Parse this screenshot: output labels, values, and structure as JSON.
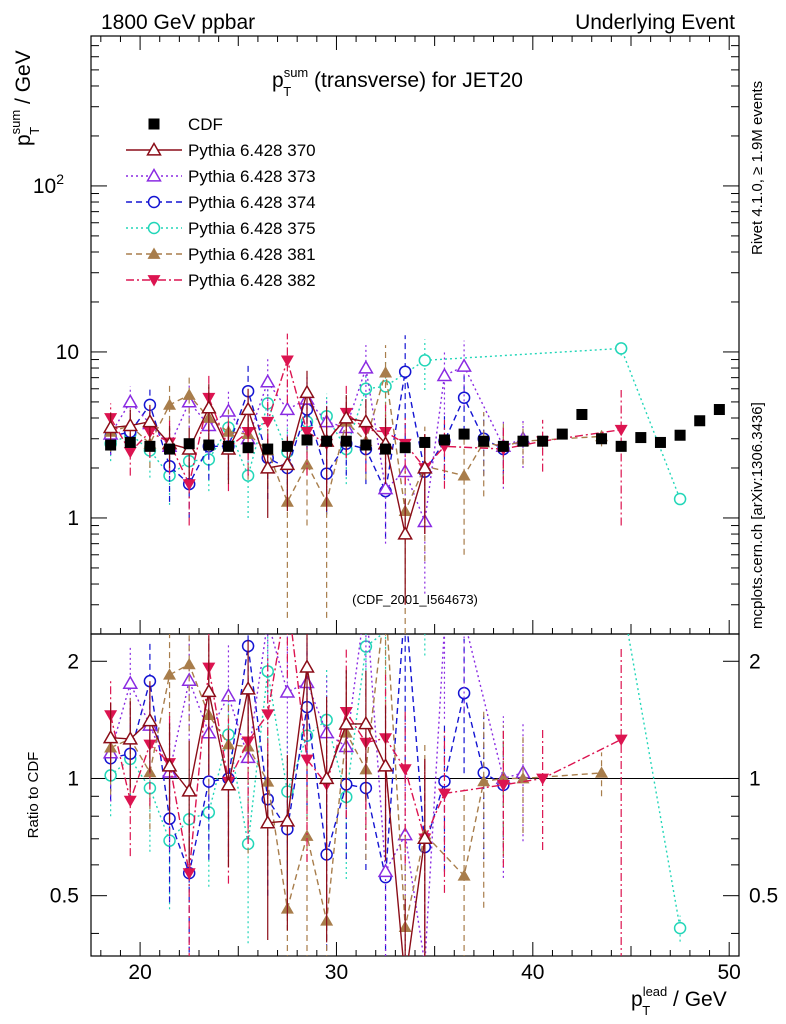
{
  "header": {
    "left": "1800 GeV ppbar",
    "right": "Underlying Event"
  },
  "side_text": {
    "rivet": "Rivet 4.1.0, ≥ 1.9M events",
    "mcplots": "mcplots.cern.ch [arXiv:1306.3436]"
  },
  "colors": {
    "cdf": "#000000",
    "p370": "#8b0d18",
    "p373": "#8a2be2",
    "p374": "#1414d2",
    "p375": "#22d6b8",
    "p381": "#a87d4b",
    "p382": "#dc1450",
    "watermark": "#9a9a9a"
  },
  "chart_data": {
    "type": "scatter",
    "title": {
      "p": "p",
      "sup": "sum",
      "sub": "T",
      "rest": " (transverse) for JET20"
    },
    "ylabel": {
      "p": "p",
      "sup": "sum",
      "sub": "T",
      "rest": " / GeV"
    },
    "xlabel": {
      "p": "p",
      "sup": "lead",
      "sub": "T",
      "rest": " / GeV"
    },
    "ratio_ylabel": "Ratio to CDF",
    "watermark": "(CDF_2001_I564673)",
    "xlim": [
      17.5,
      50.5
    ],
    "ylim": [
      0.2,
      800
    ],
    "ylog": true,
    "ratio_ylim": [
      0.35,
      2.35
    ],
    "ratio_ylog": true,
    "xticks": [
      {
        "v": 20,
        "label": "20"
      },
      {
        "v": 30,
        "label": "30"
      },
      {
        "v": 40,
        "label": "40"
      },
      {
        "v": 50,
        "label": "50"
      }
    ],
    "yticks": [
      {
        "v": 1,
        "label": "1"
      },
      {
        "v": 10,
        "label": "10"
      },
      {
        "v": 100,
        "label": "10",
        "sup": "2"
      }
    ],
    "ratio_yticks": [
      {
        "v": 0.5,
        "label": "0.5"
      },
      {
        "v": 1,
        "label": "1"
      },
      {
        "v": 2,
        "label": "2"
      }
    ],
    "legend": [
      {
        "label": "CDF",
        "key": "cdf",
        "marker": "square",
        "dash": "none",
        "color": "#000000"
      },
      {
        "label": "Pythia 6.428 370",
        "key": "p370",
        "marker": "tri-up-open",
        "dash": "solid",
        "color": "#8b0d18"
      },
      {
        "label": "Pythia 6.428 373",
        "key": "p373",
        "marker": "tri-up-open",
        "dash": "dot",
        "color": "#8a2be2"
      },
      {
        "label": "Pythia 6.428 374",
        "key": "p374",
        "marker": "circle-open",
        "dash": "dash",
        "color": "#1414d2"
      },
      {
        "label": "Pythia 6.428 375",
        "key": "p375",
        "marker": "circle-open",
        "dash": "dot",
        "color": "#22d6b8"
      },
      {
        "label": "Pythia 6.428 381",
        "key": "p381",
        "marker": "tri-up-filled",
        "dash": "dash",
        "color": "#a87d4b"
      },
      {
        "label": "Pythia 6.428 382",
        "key": "p382",
        "marker": "tri-down-filled",
        "dash": "dashdot",
        "color": "#dc1450"
      }
    ],
    "series": [
      {
        "key": "cdf",
        "name": "CDF",
        "x": [
          18.5,
          19.5,
          20.5,
          21.5,
          22.5,
          23.5,
          24.5,
          25.5,
          26.5,
          27.5,
          28.5,
          29.5,
          30.5,
          31.5,
          32.5,
          33.5,
          34.5,
          35.5,
          36.5,
          37.5,
          38.5,
          39.5,
          40.5,
          41.5,
          42.5,
          43.5,
          44.5,
          45.5,
          46.5,
          47.5,
          48.5,
          49.5
        ],
        "y": [
          2.75,
          2.85,
          2.7,
          2.6,
          2.8,
          2.75,
          2.7,
          2.65,
          2.6,
          2.7,
          2.95,
          2.9,
          2.9,
          2.75,
          2.6,
          2.65,
          2.85,
          2.95,
          3.2,
          2.9,
          2.7,
          2.9,
          2.9,
          3.2,
          4.2,
          3.0,
          2.7,
          3.05,
          2.85,
          3.15,
          3.85,
          4.5
        ]
      },
      {
        "key": "p370",
        "name": "Pythia 6.428 370",
        "x": [
          18.5,
          19.5,
          20.5,
          21.5,
          22.5,
          23.5,
          24.5,
          25.5,
          26.5,
          27.5,
          28.5,
          29.5,
          30.5,
          31.5,
          32.5,
          33.5,
          34.5
        ],
        "y": [
          3.5,
          3.6,
          3.8,
          2.8,
          2.6,
          4.6,
          2.6,
          4.5,
          2.0,
          2.1,
          5.7,
          2.9,
          4.0,
          3.8,
          2.8,
          0.8,
          2.0
        ],
        "err": [
          0.8,
          0.9,
          1.0,
          0.8,
          0.9,
          1.8,
          1.0,
          1.5,
          1.0,
          1.0,
          2.0,
          1.8,
          1.5,
          1.4,
          1.2,
          0.5,
          1.2
        ]
      },
      {
        "key": "p373",
        "name": "Pythia 6.428 373",
        "x": [
          18.5,
          19.5,
          20.5,
          21.5,
          22.5,
          23.5,
          24.5,
          25.5,
          26.5,
          27.5,
          28.5,
          29.5,
          30.5,
          31.5,
          32.5,
          33.5,
          34.5,
          35.5,
          36.5,
          38.5,
          39.5
        ],
        "y": [
          3.2,
          5.0,
          3.7,
          2.7,
          5.0,
          3.6,
          4.4,
          3.0,
          6.6,
          4.5,
          5.2,
          3.8,
          3.5,
          8.0,
          1.5,
          1.9,
          0.95,
          7.2,
          8.2,
          2.7,
          3.0
        ],
        "err": [
          0.8,
          1.2,
          1.0,
          1.0,
          1.5,
          1.2,
          1.6,
          1.2,
          2.5,
          1.8,
          2.0,
          1.5,
          1.2,
          3.0,
          0.8,
          1.0,
          0.6,
          3.0,
          3.5,
          1.2,
          1.0
        ]
      },
      {
        "key": "p374",
        "name": "Pythia 6.428 374",
        "x": [
          18.5,
          19.5,
          20.5,
          21.5,
          22.5,
          23.5,
          24.5,
          25.5,
          26.5,
          27.5,
          28.5,
          29.5,
          30.5,
          31.5,
          32.5,
          33.5,
          34.5,
          35.5,
          36.5,
          37.5,
          38.5
        ],
        "y": [
          3.1,
          3.3,
          4.8,
          2.05,
          1.6,
          2.7,
          2.7,
          5.8,
          2.3,
          2.0,
          4.5,
          1.85,
          2.8,
          2.6,
          1.45,
          7.6,
          1.9,
          2.9,
          5.3,
          3.0,
          2.6
        ],
        "err": [
          0.7,
          0.8,
          1.2,
          0.8,
          0.6,
          1.0,
          1.0,
          2.5,
          1.0,
          0.8,
          2.0,
          0.8,
          1.0,
          1.0,
          0.7,
          5.0,
          1.0,
          1.2,
          2.0,
          1.2,
          0.8
        ]
      },
      {
        "key": "p375",
        "name": "Pythia 6.428 375",
        "x": [
          18.5,
          19.5,
          20.5,
          21.5,
          22.5,
          23.5,
          24.5,
          25.5,
          26.5,
          27.5,
          28.5,
          29.5,
          30.5,
          31.5,
          32.5,
          34.5,
          44.5,
          47.5
        ],
        "y": [
          2.8,
          3.2,
          2.55,
          1.8,
          2.2,
          2.25,
          3.5,
          1.8,
          4.9,
          2.5,
          3.8,
          4.1,
          2.6,
          6.0,
          6.2,
          8.9,
          10.5,
          1.3
        ],
        "err": [
          0.6,
          0.7,
          0.8,
          0.6,
          0.8,
          0.8,
          1.2,
          0.8,
          1.8,
          1.0,
          1.5,
          1.5,
          1.0,
          2.0,
          2.5,
          3.0,
          1.0,
          0.1
        ]
      },
      {
        "key": "p381",
        "name": "Pythia 6.428 381",
        "x": [
          18.5,
          19.5,
          20.5,
          21.5,
          22.5,
          23.5,
          24.5,
          25.5,
          26.5,
          27.5,
          28.5,
          29.5,
          30.5,
          31.5,
          32.5,
          33.5,
          34.5,
          36.5,
          37.5,
          38.5,
          39.5,
          43.5
        ],
        "y": [
          3.3,
          3.6,
          2.8,
          4.8,
          5.5,
          4.0,
          3.3,
          3.2,
          2.55,
          1.25,
          2.1,
          1.25,
          3.8,
          2.9,
          7.5,
          1.1,
          2.05,
          1.8,
          2.85,
          2.7,
          2.9,
          3.1
        ],
        "err": [
          0.8,
          1.0,
          0.8,
          1.5,
          1.8,
          1.5,
          1.2,
          1.5,
          1.0,
          1.0,
          1.2,
          1.0,
          1.5,
          1.2,
          3.5,
          0.9,
          1.5,
          1.2,
          1.5,
          1.0,
          0.8,
          0.4
        ]
      },
      {
        "key": "p382",
        "name": "Pythia 6.428 382",
        "x": [
          18.5,
          19.5,
          20.5,
          21.5,
          22.5,
          23.5,
          24.5,
          25.5,
          26.5,
          27.5,
          28.5,
          29.5,
          30.5,
          31.5,
          32.5,
          33.5,
          34.5,
          35.5,
          38.5,
          40.5,
          44.5
        ],
        "y": [
          4.0,
          2.5,
          3.3,
          2.85,
          1.6,
          5.3,
          2.65,
          3.3,
          3.8,
          8.9,
          3.3,
          2.8,
          4.3,
          3.4,
          3.3,
          2.8,
          2.0,
          2.7,
          2.6,
          2.9,
          3.4
        ],
        "err": [
          0.9,
          0.7,
          1.0,
          1.0,
          0.7,
          2.0,
          1.2,
          1.5,
          1.5,
          4.0,
          1.5,
          1.5,
          2.0,
          1.5,
          1.5,
          1.2,
          1.2,
          1.2,
          1.0,
          1.0,
          2.5
        ]
      }
    ]
  }
}
